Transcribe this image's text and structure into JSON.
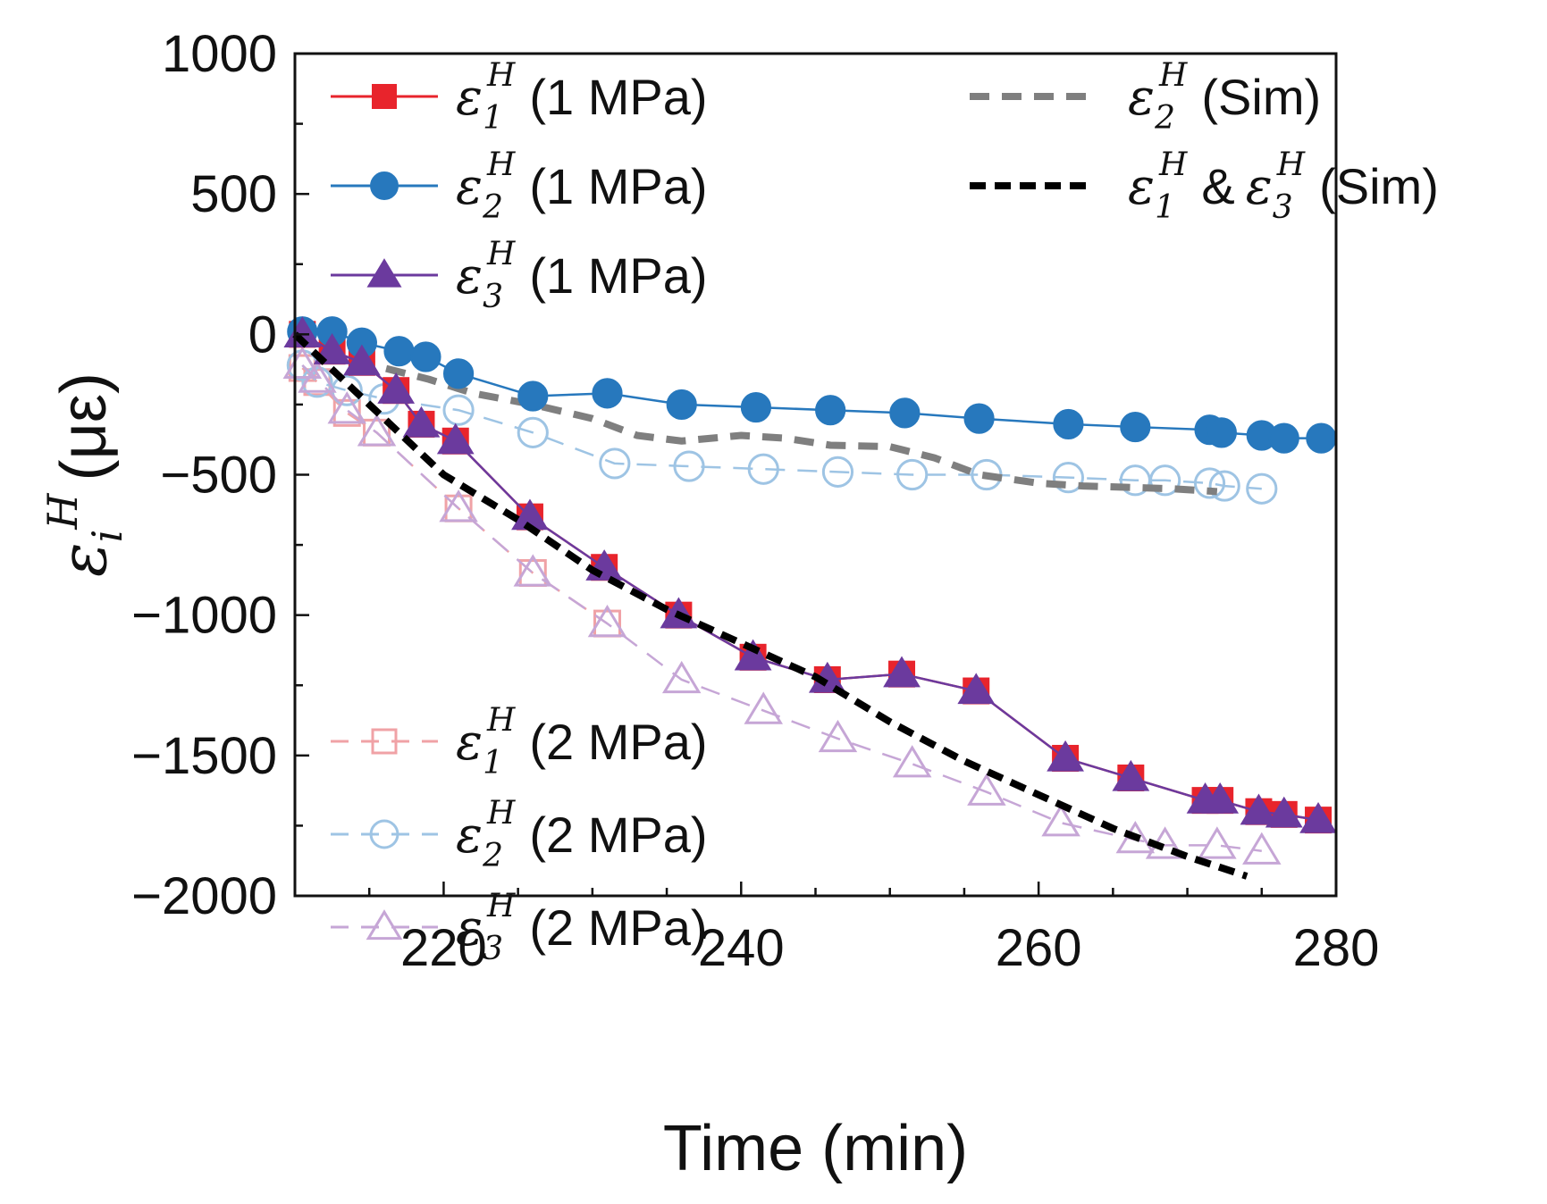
{
  "chart_data": {
    "type": "line",
    "title": "",
    "xlabel": "Time (min)",
    "ylabel_symbol": "ε",
    "ylabel_sup": "H",
    "ylabel_sub": "i",
    "ylabel_unit": "(με)",
    "xlim": [
      210,
      280
    ],
    "ylim": [
      -2000,
      1000
    ],
    "xticks": [
      220,
      240,
      260,
      280
    ],
    "xtick_labels": [
      "220",
      "240",
      "260",
      "280"
    ],
    "yticks": [
      1000,
      500,
      0,
      -500,
      -1000,
      -1500,
      -2000
    ],
    "ytick_labels": [
      "1000",
      "500",
      "0",
      "−500",
      "−1000",
      "−1500",
      "−2000"
    ],
    "series": [
      {
        "id": "e2-sim",
        "name": "(Sim)",
        "sym": "ε",
        "sub": "2",
        "sup": "H",
        "style": "dashed",
        "marker": "none",
        "color": "#7f7f7f",
        "x": [
          210,
          213,
          216,
          219,
          222,
          226,
          230,
          233,
          236,
          240,
          243,
          246,
          250,
          253,
          256,
          260,
          263,
          266,
          269,
          272
        ],
        "y": [
          -10,
          -70,
          -120,
          -160,
          -210,
          -250,
          -300,
          -360,
          -380,
          -360,
          -370,
          -395,
          -400,
          -440,
          -500,
          -530,
          -540,
          -545,
          -550,
          -560
        ]
      },
      {
        "id": "e13-sim",
        "name": "(Sim)",
        "sym": "ε",
        "sub": "1",
        "sup": "H",
        "sym2": "ε",
        "sub2": "3",
        "sup2": "H",
        "joiner": "&",
        "style": "dashed",
        "marker": "none",
        "color": "#000000",
        "x": [
          210,
          215,
          220,
          225,
          230,
          235,
          240,
          245,
          250,
          255,
          260,
          265,
          270,
          274
        ],
        "y": [
          0,
          -250,
          -500,
          -660,
          -840,
          -980,
          -1100,
          -1220,
          -1380,
          -1520,
          -1640,
          -1760,
          -1860,
          -1930
        ]
      },
      {
        "id": "e1-1mpa",
        "name": "(1 MPa)",
        "sym": "ε",
        "sub": "1",
        "sup": "H",
        "style": "solid",
        "marker": "square",
        "filled": true,
        "color": "#e8242c",
        "x": [
          210.5,
          212.5,
          214.5,
          216.8,
          218.5,
          220.8,
          225.8,
          230.8,
          235.8,
          240.8,
          245.8,
          250.8,
          255.8,
          261.8,
          266.2,
          271.2,
          272.2,
          274.8,
          276.5,
          278.8
        ],
        "y": [
          0,
          -60,
          -100,
          -200,
          -320,
          -380,
          -650,
          -830,
          -1000,
          -1150,
          -1230,
          -1210,
          -1270,
          -1510,
          -1580,
          -1660,
          -1660,
          -1700,
          -1710,
          -1730
        ]
      },
      {
        "id": "e2-1mpa",
        "name": "(1 MPa)",
        "sym": "ε",
        "sub": "2",
        "sup": "H",
        "style": "solid",
        "marker": "circle",
        "filled": true,
        "color": "#2778bd",
        "x": [
          210.5,
          212.5,
          214.5,
          217,
          218.8,
          221,
          226,
          231,
          236,
          241,
          246,
          251,
          256,
          262,
          266.5,
          271.5,
          272.3,
          275,
          276.5,
          279
        ],
        "y": [
          10,
          10,
          -30,
          -60,
          -80,
          -140,
          -220,
          -210,
          -250,
          -260,
          -270,
          -280,
          -300,
          -320,
          -330,
          -340,
          -350,
          -360,
          -370,
          -370
        ]
      },
      {
        "id": "e3-1mpa",
        "name": "(1 MPa)",
        "sym": "ε",
        "sub": "3",
        "sup": "H",
        "style": "solid",
        "marker": "triangle",
        "filled": true,
        "color": "#6b3a9e",
        "x": [
          210.5,
          212.5,
          214.5,
          216.8,
          218.5,
          220.8,
          225.8,
          230.8,
          235.8,
          240.8,
          245.8,
          250.8,
          255.8,
          261.8,
          266.2,
          271.2,
          272.2,
          274.8,
          276.5,
          278.8
        ],
        "y": [
          0,
          -60,
          -100,
          -200,
          -320,
          -380,
          -650,
          -830,
          -1000,
          -1150,
          -1230,
          -1210,
          -1270,
          -1510,
          -1580,
          -1660,
          -1660,
          -1700,
          -1710,
          -1730
        ]
      },
      {
        "id": "e1-2mpa",
        "name": "(2 MPa)",
        "sym": "ε",
        "sub": "1",
        "sup": "H",
        "style": "dashed",
        "marker": "square",
        "filled": false,
        "color": "#f0a2a6",
        "x": [
          210.5,
          211.5,
          213.5,
          215.5,
          221,
          226,
          231
        ],
        "y": [
          -120,
          -170,
          -280,
          -350,
          -620,
          -850,
          -1030
        ]
      },
      {
        "id": "e2-2mpa",
        "name": "(2 MPa)",
        "sym": "ε",
        "sub": "2",
        "sup": "H",
        "style": "dashed",
        "marker": "circle",
        "filled": false,
        "color": "#9ec4e4",
        "x": [
          210.5,
          211.5,
          213.5,
          216,
          221,
          226,
          231.5,
          236.5,
          241.5,
          246.5,
          251.5,
          256.5,
          262,
          266.5,
          268.5,
          271.5,
          272.5,
          275
        ],
        "y": [
          -110,
          -170,
          -200,
          -230,
          -270,
          -350,
          -460,
          -470,
          -480,
          -490,
          -500,
          -500,
          -510,
          -520,
          -520,
          -530,
          -540,
          -550
        ]
      },
      {
        "id": "e3-2mpa",
        "name": "(2 MPa)",
        "sym": "ε",
        "sub": "3",
        "sup": "H",
        "style": "dashed",
        "marker": "triangle",
        "filled": false,
        "color": "#c6a6d6",
        "x": [
          210.5,
          211.5,
          213.5,
          215.5,
          221,
          226,
          231,
          236,
          241.5,
          246.5,
          251.5,
          256.5,
          261.5,
          266.5,
          268.5,
          272,
          275
        ],
        "y": [
          -110,
          -160,
          -270,
          -350,
          -620,
          -850,
          -1030,
          -1230,
          -1340,
          -1440,
          -1530,
          -1630,
          -1740,
          -1800,
          -1820,
          -1820,
          -1840
        ]
      }
    ],
    "legend_top": [
      {
        "series": "e1-1mpa",
        "position": "top-left"
      },
      {
        "series": "e2-1mpa",
        "position": "top-left"
      },
      {
        "series": "e3-1mpa",
        "position": "top-left"
      },
      {
        "series": "e2-sim",
        "position": "top-right"
      },
      {
        "series": "e13-sim",
        "position": "top-right"
      }
    ],
    "legend_bottom": [
      {
        "series": "e1-2mpa",
        "position": "bottom-left"
      },
      {
        "series": "e2-2mpa",
        "position": "bottom-left"
      },
      {
        "series": "e3-2mpa",
        "position": "bottom-left"
      }
    ]
  }
}
